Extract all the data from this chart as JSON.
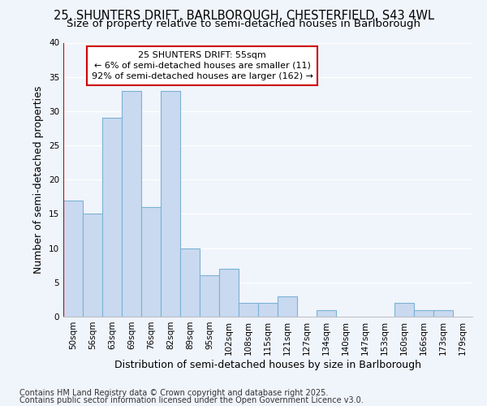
{
  "title1": "25, SHUNTERS DRIFT, BARLBOROUGH, CHESTERFIELD, S43 4WL",
  "title2": "Size of property relative to semi-detached houses in Barlborough",
  "xlabel": "Distribution of semi-detached houses by size in Barlborough",
  "ylabel": "Number of semi-detached properties",
  "categories": [
    "50sqm",
    "56sqm",
    "63sqm",
    "69sqm",
    "76sqm",
    "82sqm",
    "89sqm",
    "95sqm",
    "102sqm",
    "108sqm",
    "115sqm",
    "121sqm",
    "127sqm",
    "134sqm",
    "140sqm",
    "147sqm",
    "153sqm",
    "160sqm",
    "166sqm",
    "173sqm",
    "179sqm"
  ],
  "values": [
    17,
    15,
    29,
    33,
    16,
    33,
    10,
    6,
    7,
    2,
    2,
    3,
    0,
    1,
    0,
    0,
    0,
    2,
    1,
    1,
    0
  ],
  "bar_color": "#c9d9f0",
  "bar_edge_color": "#7ab3d4",
  "highlight_color": "#cc0000",
  "annotation_title": "25 SHUNTERS DRIFT: 55sqm",
  "annotation_line1": "← 6% of semi-detached houses are smaller (11)",
  "annotation_line2": "92% of semi-detached houses are larger (162) →",
  "ylim": [
    0,
    40
  ],
  "yticks": [
    0,
    5,
    10,
    15,
    20,
    25,
    30,
    35,
    40
  ],
  "footer1": "Contains HM Land Registry data © Crown copyright and database right 2025.",
  "footer2": "Contains public sector information licensed under the Open Government Licence v3.0.",
  "bg_color": "#f0f4fb",
  "grid_color": "#ffffff",
  "title1_fontsize": 10.5,
  "title2_fontsize": 9.5,
  "axis_label_fontsize": 9,
  "tick_fontsize": 7.5,
  "footer_fontsize": 7,
  "annotation_fontsize": 8
}
